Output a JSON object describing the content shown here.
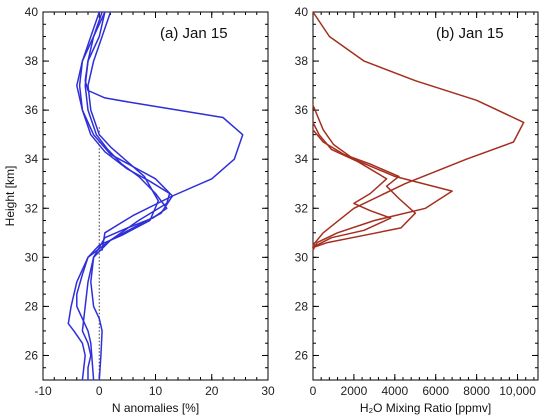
{
  "chart_data": [
    {
      "type": "line",
      "title": "(a) Jan 15",
      "xlabel": "N anomalies [%]",
      "ylabel": "Height [km]",
      "xlim": [
        -10,
        30
      ],
      "ylim": [
        25,
        40
      ],
      "xticks": [
        -10,
        0,
        10,
        20,
        30
      ],
      "xtick_labels": [
        "-10",
        "0",
        "10",
        "20",
        "30"
      ],
      "yticks": [
        26,
        28,
        30,
        32,
        34,
        36,
        38,
        40
      ],
      "ytick_labels": [
        "26",
        "28",
        "30",
        "32",
        "34",
        "36",
        "38",
        "40"
      ],
      "reference_line": {
        "x": 0,
        "style": "dotted"
      },
      "line_color": "#2f2fd9",
      "series": [
        {
          "x": [
            1,
            0,
            -2,
            -2.5,
            -2,
            1,
            6,
            14,
            22,
            25.5,
            24,
            20,
            13,
            6,
            1,
            0.5
          ],
          "y": [
            40,
            39,
            38,
            37.2,
            36.8,
            36.5,
            36.3,
            36,
            35.7,
            35,
            34,
            33.2,
            32.5,
            31.7,
            31,
            30.3
          ]
        },
        {
          "x": [
            0,
            -1.5,
            -3,
            -3.5,
            -3,
            -1.5,
            1,
            5,
            9,
            12.5,
            12,
            7,
            2,
            -1,
            -2,
            -2.5,
            -3,
            -2,
            -1.5,
            -2,
            -2
          ],
          "y": [
            40,
            39,
            38,
            37,
            36,
            35,
            34.3,
            33.6,
            33.1,
            32.6,
            32.2,
            31.5,
            30.7,
            30,
            29,
            28,
            27,
            26.5,
            26,
            25.5,
            25
          ]
        },
        {
          "x": [
            1,
            -1,
            -3,
            -4,
            -3,
            -1,
            2,
            6,
            10,
            13,
            11,
            6,
            2,
            -2,
            -4,
            -5,
            -5.5,
            -4.5,
            -3,
            -2.5,
            -3
          ],
          "y": [
            40,
            39,
            38,
            37,
            36,
            35,
            34.2,
            33.7,
            33.2,
            32.5,
            31.8,
            31.2,
            30.7,
            30,
            29,
            28,
            27.3,
            27,
            26.5,
            26,
            25
          ]
        },
        {
          "x": [
            2,
            0.5,
            -1,
            -2,
            -1.5,
            0,
            2,
            5,
            8,
            10.5,
            9,
            4,
            0,
            -2,
            -3,
            -4,
            -4,
            -3,
            -2,
            -1.5,
            -1
          ],
          "y": [
            40,
            39,
            38,
            37,
            36,
            35,
            34.5,
            33.9,
            33.3,
            32.3,
            31.5,
            30.9,
            30.5,
            30,
            29.3,
            28.5,
            28,
            27.5,
            27,
            26.5,
            25
          ]
        },
        {
          "x": [
            0.5,
            -1,
            -2,
            -2.5,
            -2,
            -0.5,
            1.5,
            4,
            7,
            10,
            12,
            9.5,
            5,
            1,
            -1,
            -1.5,
            -1,
            0,
            0.5,
            0.3,
            0
          ],
          "y": [
            40,
            39,
            38,
            37,
            36,
            35,
            34.4,
            33.8,
            33.3,
            32.6,
            32,
            31.6,
            31.2,
            30.8,
            30,
            29,
            28,
            27.5,
            27,
            26,
            25
          ]
        }
      ]
    },
    {
      "type": "line",
      "title": "(b) Jan 15",
      "xlabel": "H₂O Mixing Ratio [ppmv]",
      "ylabel": "",
      "xlim": [
        0,
        11000
      ],
      "ylim": [
        25,
        40
      ],
      "xticks": [
        0,
        2000,
        4000,
        6000,
        8000,
        10000
      ],
      "xtick_labels": [
        "0",
        "2000",
        "4000",
        "6000",
        "8000",
        "10,000"
      ],
      "yticks": [
        26,
        28,
        30,
        32,
        34,
        36,
        38,
        40
      ],
      "ytick_labels": [
        "26",
        "28",
        "30",
        "32",
        "34",
        "36",
        "38",
        "40"
      ],
      "line_color": "#a52f1e",
      "series": [
        {
          "x": [
            0,
            800,
            2500,
            5000,
            8000,
            10300,
            9800,
            7500,
            4500,
            2000,
            500,
            0
          ],
          "y": [
            40,
            39,
            38,
            37.2,
            36.4,
            35.5,
            34.7,
            34,
            33,
            32,
            31,
            30.5
          ]
        },
        {
          "x": [
            0,
            200,
            500,
            1000,
            2000,
            4000,
            6800,
            5500,
            3000,
            1200,
            200,
            0
          ],
          "y": [
            36.2,
            35.8,
            35.2,
            34.6,
            34,
            33.3,
            32.7,
            32,
            31.5,
            31,
            30.6,
            30.3
          ]
        },
        {
          "x": [
            0,
            300,
            900,
            2200,
            3600,
            2800,
            2000,
            2800,
            3800,
            2500,
            900,
            200,
            0
          ],
          "y": [
            35.5,
            35,
            34.4,
            33.9,
            33.2,
            32.6,
            32.2,
            31.9,
            31.6,
            31.1,
            30.8,
            30.5,
            30.4
          ]
        },
        {
          "x": [
            0,
            500,
            1500,
            2800,
            4200,
            3600,
            4200,
            5000,
            4300,
            2500,
            700,
            0
          ],
          "y": [
            35.2,
            34.7,
            34.2,
            33.8,
            33.3,
            32.9,
            32.4,
            31.8,
            31.2,
            30.9,
            30.6,
            30.4
          ]
        }
      ]
    }
  ]
}
